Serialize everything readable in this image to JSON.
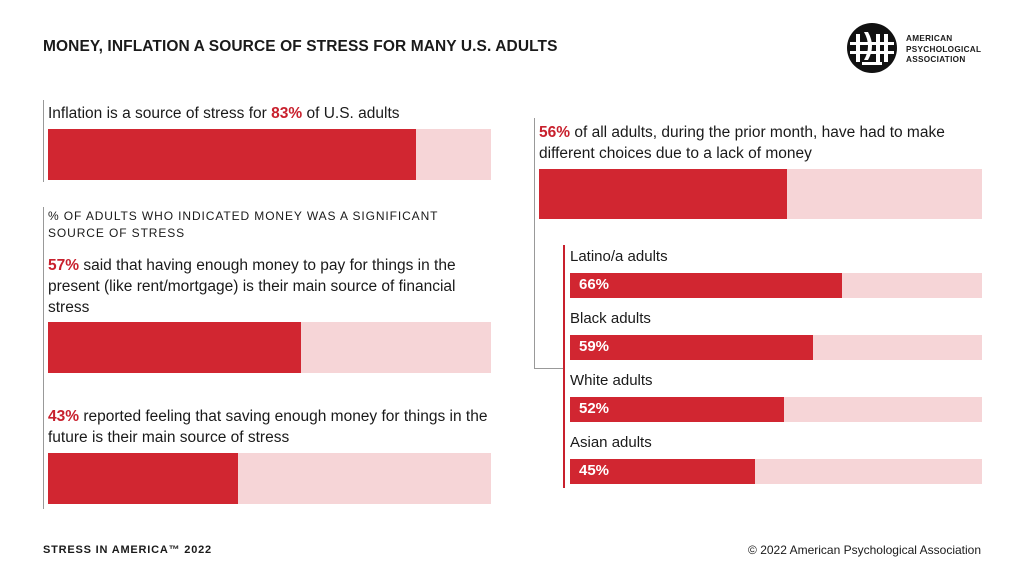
{
  "title": "MONEY, INFLATION A SOURCE OF STRESS FOR MANY U.S. ADULTS",
  "logo": {
    "line1": "AMERICAN",
    "line2": "PSYCHOLOGICAL",
    "line3": "ASSOCIATION"
  },
  "colors": {
    "accent": "#d12631",
    "track": "#f6d5d7",
    "text": "#1a1a1a"
  },
  "inflation": {
    "prefix": "Inflation is a source of stress for ",
    "pct": "83%",
    "suffix": " of U.S. adults"
  },
  "subhead": {
    "line1": "% OF ADULTS WHO INDICATED MONEY WAS A SIGNIFICANT",
    "line2": "SOURCE OF STRESS"
  },
  "present": {
    "pct": "57%",
    "text": " said that having enough money to pay for things in the present (like rent/mortgage) is their main source of financial stress"
  },
  "future": {
    "pct": "43%",
    "text": " reported feeling that saving enough money for things in the future is their main source of stress"
  },
  "choices": {
    "pct": "56%",
    "text": " of all adults, during the prior month, have had to make different choices due to a lack of money"
  },
  "groups": [
    {
      "label": "Latino/a adults",
      "value": "66%"
    },
    {
      "label": "Black adults",
      "value": "59%"
    },
    {
      "label": "White adults",
      "value": "52%"
    },
    {
      "label": "Asian adults",
      "value": "45%"
    }
  ],
  "footer": {
    "left": "STRESS IN AMERICA™ 2022",
    "right": "© 2022 American Psychological Association"
  },
  "chart_data": [
    {
      "type": "bar",
      "title": "Inflation is a source of stress for 83% of U.S. adults",
      "categories": [
        "U.S. adults"
      ],
      "values": [
        83
      ],
      "ylim": [
        0,
        100
      ]
    },
    {
      "type": "bar",
      "title": "% of adults who indicated money was a significant source of stress",
      "categories": [
        "Paying for things in the present",
        "Saving money for the future"
      ],
      "values": [
        57,
        43
      ],
      "ylim": [
        0,
        100
      ]
    },
    {
      "type": "bar",
      "title": "Had to make different choices due to a lack of money",
      "categories": [
        "All adults",
        "Latino/a adults",
        "Black adults",
        "White adults",
        "Asian adults"
      ],
      "values": [
        56,
        66,
        59,
        52,
        45
      ],
      "ylim": [
        0,
        100
      ]
    }
  ]
}
